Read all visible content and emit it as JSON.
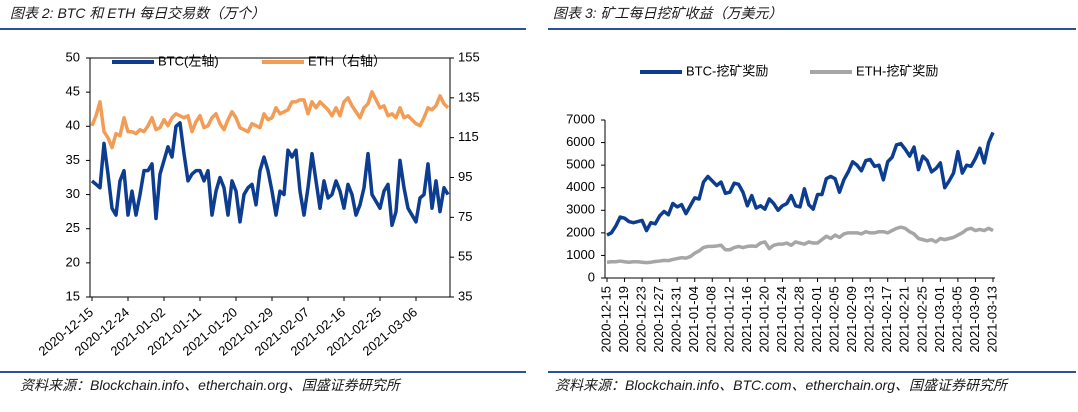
{
  "chart_data": [
    {
      "type": "line",
      "title": "图表 2: BTC 和 ETH 每日交易数（万个）",
      "source": "资料来源：Blockchain.info、etherchain.org、国盛证券研究所",
      "categories": [
        "2020-12-15",
        null,
        null,
        null,
        null,
        null,
        null,
        null,
        null,
        "2020-12-24",
        null,
        null,
        null,
        null,
        null,
        null,
        null,
        null,
        "2021-01-02",
        null,
        null,
        null,
        null,
        null,
        null,
        null,
        null,
        "2021-01-11",
        null,
        null,
        null,
        null,
        null,
        null,
        null,
        null,
        "2021-01-20",
        null,
        null,
        null,
        null,
        null,
        null,
        null,
        null,
        "2021-01-29",
        null,
        null,
        null,
        null,
        null,
        null,
        null,
        null,
        "2021-02-07",
        null,
        null,
        null,
        null,
        null,
        null,
        null,
        null,
        "2021-02-16",
        null,
        null,
        null,
        null,
        null,
        null,
        null,
        null,
        "2021-02-25",
        null,
        null,
        null,
        null,
        null,
        null,
        null,
        null,
        "2021-03-06",
        null,
        null,
        null,
        null,
        null,
        null,
        null,
        null
      ],
      "series": [
        {
          "name": "BTC(左轴)",
          "color": "#0d3d91",
          "values": [
            32,
            31.5,
            31,
            37.5,
            33,
            28,
            27,
            32,
            33.5,
            27,
            30.5,
            27,
            30,
            33.5,
            33.5,
            34.5,
            26.5,
            33,
            35,
            37,
            35.5,
            40,
            40.5,
            36,
            32,
            33,
            33.5,
            33.5,
            32,
            33.5,
            27,
            30.5,
            32.5,
            31,
            27,
            32,
            30.5,
            26,
            30,
            31,
            31.5,
            28.5,
            33.5,
            35.5,
            33.5,
            30.5,
            27,
            30.5,
            30,
            36.5,
            35.5,
            36.5,
            30.5,
            27,
            31,
            36,
            32,
            28,
            32,
            29.5,
            30,
            32,
            30.5,
            28,
            31.5,
            30,
            27,
            28.5,
            31,
            36,
            30,
            29,
            28,
            30.5,
            31.5,
            25.5,
            27.5,
            35,
            31,
            28,
            27,
            26,
            29.5,
            30,
            34.5,
            28,
            32,
            27.5,
            31,
            30
          ]
        },
        {
          "name": "ETH（右轴）",
          "color": "#f39c55",
          "axis": "y2",
          "values": [
            121,
            126,
            133,
            118,
            115,
            110,
            117,
            116,
            125,
            118,
            118,
            117,
            119,
            118,
            121,
            125,
            119,
            120,
            124,
            121,
            125,
            127,
            126,
            125,
            126,
            118,
            123,
            126,
            120,
            121,
            125,
            127,
            122,
            119,
            124,
            128,
            125,
            120,
            119,
            118,
            122,
            121,
            120,
            127,
            124,
            125,
            130,
            127,
            128,
            129,
            133,
            133,
            134,
            134,
            127,
            133,
            130,
            133,
            131,
            129,
            126,
            130,
            126,
            133,
            135,
            131,
            128,
            125,
            130,
            132,
            138,
            134,
            130,
            131,
            126,
            127,
            125,
            130,
            125,
            126,
            124,
            122,
            121,
            125,
            130,
            129,
            131,
            136,
            132,
            130
          ]
        }
      ],
      "ylim": [
        15,
        50
      ],
      "yticks": [
        15,
        20,
        25,
        30,
        35,
        40,
        45,
        50
      ],
      "y2lim": [
        35,
        155
      ],
      "y2ticks": [
        35,
        55,
        75,
        95,
        115,
        135,
        155
      ],
      "legend": "top"
    },
    {
      "type": "line",
      "title": "图表 3: 矿工每日挖矿收益（万美元）",
      "source": "资料来源：Blockchain.info、BTC.com、etherchain.org、国盛证券研究所",
      "categories": [
        "2020-12-15",
        null,
        null,
        null,
        "2020-12-19",
        null,
        null,
        null,
        "2020-12-23",
        null,
        null,
        null,
        "2020-12-27",
        null,
        null,
        null,
        "2020-12-31",
        null,
        null,
        null,
        "2021-01-04",
        null,
        null,
        null,
        "2021-01-08",
        null,
        null,
        null,
        "2021-01-12",
        null,
        null,
        null,
        "2021-01-16",
        null,
        null,
        null,
        "2021-01-20",
        null,
        null,
        null,
        "2021-01-24",
        null,
        null,
        null,
        "2021-01-28",
        null,
        null,
        null,
        "2021-02-01",
        null,
        null,
        null,
        "2021-02-05",
        null,
        null,
        null,
        "2021-02-09",
        null,
        null,
        null,
        "2021-02-13",
        null,
        null,
        null,
        "2021-02-17",
        null,
        null,
        null,
        "2021-02-21",
        null,
        null,
        null,
        "2021-02-25",
        null,
        null,
        null,
        "2021-03-01",
        null,
        null,
        null,
        "2021-03-05",
        null,
        null,
        null,
        "2021-03-09",
        null,
        null,
        null,
        "2021-03-13"
      ],
      "series": [
        {
          "name": "BTC-挖矿奖励",
          "color": "#0d3d91",
          "values": [
            1900,
            2000,
            2300,
            2700,
            2650,
            2500,
            2450,
            2500,
            2550,
            2100,
            2450,
            2400,
            2750,
            2950,
            2800,
            3300,
            3150,
            3250,
            2850,
            3200,
            3550,
            3500,
            4250,
            4500,
            4300,
            4100,
            4250,
            3750,
            3800,
            4200,
            4150,
            3800,
            3200,
            3650,
            3100,
            3200,
            3050,
            3500,
            3300,
            3000,
            3200,
            3300,
            3650,
            3200,
            3150,
            3950,
            3250,
            3050,
            3700,
            3700,
            4400,
            4500,
            4400,
            3800,
            4350,
            4700,
            5150,
            5000,
            4750,
            5200,
            5250,
            4950,
            5000,
            4350,
            5150,
            5350,
            5900,
            5950,
            5700,
            5400,
            5800,
            4800,
            5400,
            5200,
            4700,
            4850,
            5100,
            4000,
            4300,
            4650,
            5600,
            4650,
            5000,
            4950,
            5300,
            5750,
            5100,
            6000,
            6450
          ]
        },
        {
          "name": "ETH-挖矿奖励",
          "color": "#a6a6a6",
          "values": [
            700,
            720,
            720,
            750,
            720,
            700,
            720,
            720,
            700,
            680,
            700,
            730,
            750,
            780,
            770,
            820,
            860,
            900,
            880,
            950,
            1100,
            1200,
            1350,
            1400,
            1400,
            1420,
            1450,
            1250,
            1250,
            1350,
            1400,
            1350,
            1400,
            1420,
            1400,
            1550,
            1600,
            1300,
            1450,
            1500,
            1500,
            1550,
            1450,
            1600,
            1550,
            1500,
            1600,
            1550,
            1550,
            1700,
            1850,
            1750,
            1900,
            1800,
            1950,
            2000,
            2000,
            2000,
            1950,
            2050,
            2000,
            2000,
            2050,
            2050,
            2000,
            2100,
            2200,
            2250,
            2200,
            2050,
            1950,
            1750,
            1700,
            1650,
            1700,
            1600,
            1750,
            1700,
            1750,
            1800,
            1900,
            2000,
            2150,
            2200,
            2100,
            2150,
            2100,
            2200,
            2100
          ]
        }
      ],
      "ylim": [
        0,
        7000
      ],
      "yticks": [
        0,
        1000,
        2000,
        3000,
        4000,
        5000,
        6000,
        7000
      ],
      "legend": "top"
    }
  ]
}
